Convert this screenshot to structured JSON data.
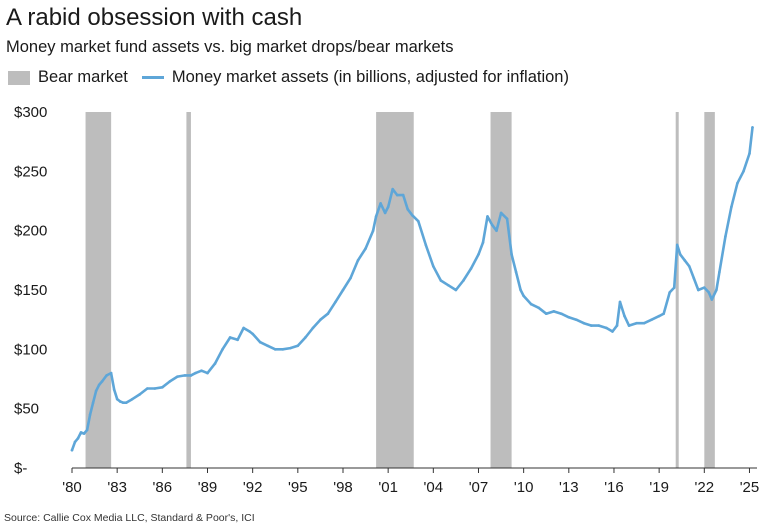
{
  "title": "A rabid obsession with cash",
  "subtitle": "Money market fund assets vs. big market drops/bear markets",
  "legend": {
    "bear": "Bear market",
    "line": "Money market assets (in billions, adjusted for inflation)"
  },
  "source": "Source: Callie Cox Media LLC, Standard & Poor's, ICI",
  "colors": {
    "line": "#5ea6d8",
    "bear": "#bdbdbd",
    "axis": "#333333"
  },
  "chart_data": {
    "type": "line",
    "title": "A rabid obsession with cash",
    "xlabel": "",
    "ylabel": "",
    "xlim": [
      1980,
      2025.5
    ],
    "ylim": [
      0,
      300
    ],
    "x_ticks": [
      1980,
      1983,
      1986,
      1989,
      1992,
      1995,
      1998,
      2001,
      2004,
      2007,
      2010,
      2013,
      2016,
      2019,
      2022,
      2025
    ],
    "x_tick_labels": [
      "'80",
      "'83",
      "'86",
      "'89",
      "'92",
      "'95",
      "'98",
      "'01",
      "'04",
      "'07",
      "'10",
      "'13",
      "'16",
      "'19",
      "'22",
      "'25"
    ],
    "y_ticks": [
      0,
      50,
      100,
      150,
      200,
      250,
      300
    ],
    "y_tick_labels": [
      "$-",
      "$50",
      "$100",
      "$150",
      "$200",
      "$250",
      "$300"
    ],
    "bear_markets": [
      {
        "start": 1980.9,
        "end": 1982.6
      },
      {
        "start": 1987.6,
        "end": 1987.9
      },
      {
        "start": 2000.2,
        "end": 2002.7
      },
      {
        "start": 2007.8,
        "end": 2009.2
      },
      {
        "start": 2020.1,
        "end": 2020.3
      },
      {
        "start": 2022.0,
        "end": 2022.7
      }
    ],
    "series": [
      {
        "name": "Money market assets (in billions, adjusted for inflation)",
        "x": [
          1980.0,
          1980.2,
          1980.4,
          1980.6,
          1980.8,
          1981.0,
          1981.2,
          1981.4,
          1981.6,
          1981.8,
          1982.0,
          1982.3,
          1982.6,
          1982.8,
          1983.0,
          1983.2,
          1983.4,
          1983.6,
          1984.0,
          1984.5,
          1985.0,
          1985.5,
          1986.0,
          1986.5,
          1987.0,
          1987.5,
          1987.9,
          1988.2,
          1988.6,
          1989.0,
          1989.5,
          1990.0,
          1990.5,
          1991.0,
          1991.4,
          1991.8,
          1992.0,
          1992.5,
          1993.0,
          1993.5,
          1994.0,
          1994.5,
          1995.0,
          1995.5,
          1996.0,
          1996.5,
          1997.0,
          1997.5,
          1998.0,
          1998.5,
          1999.0,
          1999.5,
          2000.0,
          2000.2,
          2000.5,
          2000.8,
          2001.0,
          2001.3,
          2001.6,
          2002.0,
          2002.3,
          2002.6,
          2003.0,
          2003.5,
          2004.0,
          2004.5,
          2005.0,
          2005.5,
          2006.0,
          2006.5,
          2007.0,
          2007.3,
          2007.6,
          2007.9,
          2008.2,
          2008.5,
          2008.9,
          2009.2,
          2009.5,
          2009.8,
          2010.0,
          2010.5,
          2011.0,
          2011.5,
          2012.0,
          2012.5,
          2013.0,
          2013.5,
          2014.0,
          2014.5,
          2015.0,
          2015.5,
          2015.9,
          2016.2,
          2016.4,
          2016.7,
          2017.0,
          2017.5,
          2018.0,
          2018.5,
          2019.0,
          2019.3,
          2019.7,
          2020.0,
          2020.2,
          2020.4,
          2020.7,
          2021.0,
          2021.3,
          2021.6,
          2022.0,
          2022.3,
          2022.5,
          2022.8,
          2023.0,
          2023.4,
          2023.8,
          2024.2,
          2024.6,
          2025.0,
          2025.2
        ],
        "values": [
          15,
          22,
          25,
          30,
          29,
          32,
          45,
          55,
          65,
          70,
          73,
          78,
          80,
          66,
          58,
          56,
          55,
          55,
          58,
          62,
          67,
          67,
          68,
          73,
          77,
          78,
          78,
          80,
          82,
          80,
          88,
          100,
          110,
          108,
          118,
          115,
          113,
          106,
          103,
          100,
          100,
          101,
          103,
          110,
          118,
          125,
          130,
          140,
          150,
          160,
          175,
          185,
          200,
          212,
          223,
          215,
          220,
          235,
          230,
          230,
          218,
          213,
          208,
          188,
          170,
          158,
          154,
          150,
          158,
          168,
          180,
          190,
          212,
          205,
          200,
          215,
          210,
          180,
          165,
          150,
          145,
          138,
          135,
          130,
          132,
          130,
          127,
          125,
          122,
          120,
          120,
          118,
          115,
          120,
          140,
          128,
          120,
          122,
          122,
          125,
          128,
          130,
          148,
          152,
          188,
          180,
          175,
          170,
          160,
          150,
          152,
          148,
          142,
          150,
          165,
          195,
          220,
          240,
          250,
          265,
          287
        ]
      }
    ]
  }
}
